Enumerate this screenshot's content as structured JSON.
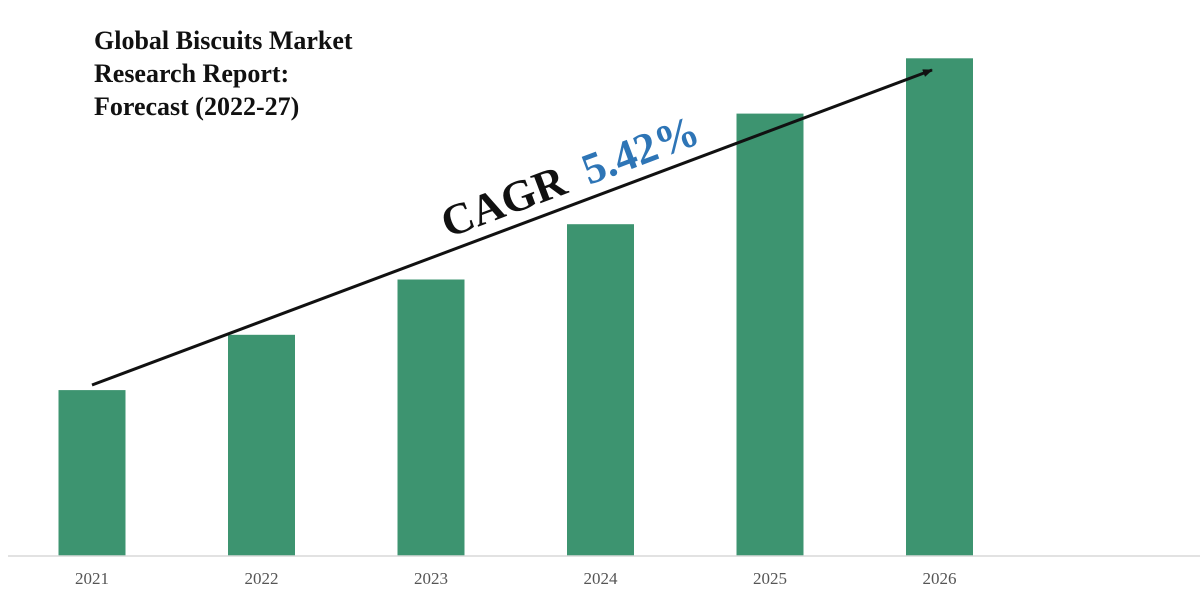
{
  "chart_data": {
    "type": "bar",
    "title_lines": [
      "Global Biscuits Market",
      "Research Report:",
      "Forecast (2022-27)"
    ],
    "categories": [
      "2021",
      "2022",
      "2023",
      "2024",
      "2025",
      "2026"
    ],
    "values": [
      30,
      40,
      50,
      60,
      80,
      90
    ],
    "ylim": [
      0,
      100
    ],
    "xlabel": "",
    "ylabel": "",
    "grid": false,
    "legend": "none",
    "bar_color": "#3d9470",
    "annotation": {
      "prefix": "CAGR",
      "value": "5.42%",
      "prefix_color": "#111111",
      "value_color": "#2e75b6"
    }
  }
}
